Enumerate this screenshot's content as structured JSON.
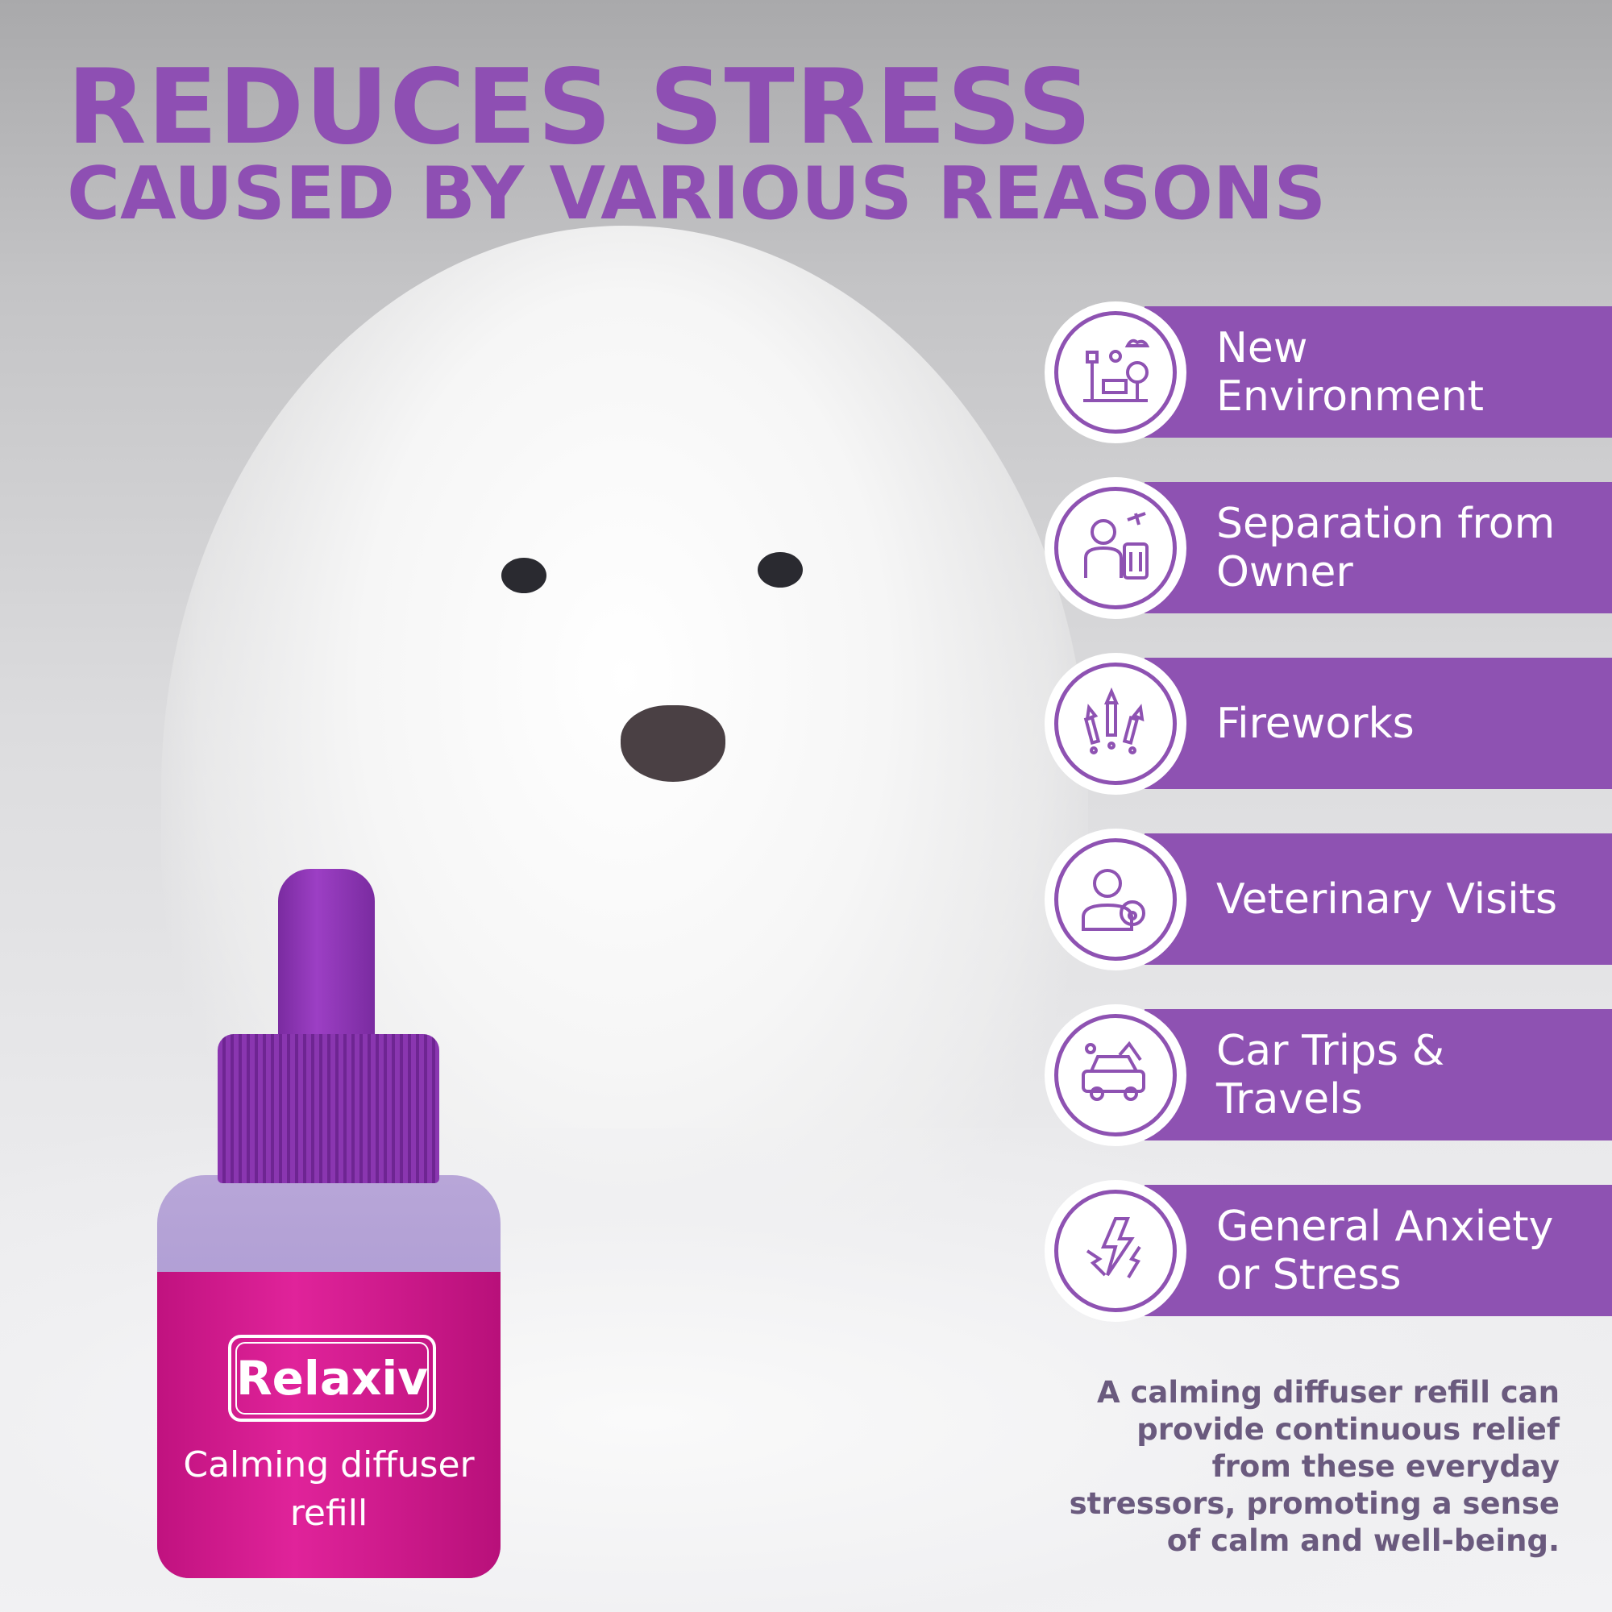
{
  "headline": {
    "title": "REDUCES STRESS",
    "subtitle": "CAUSED BY VARIOUS REASONS"
  },
  "colors": {
    "accent": "#8e52b2",
    "body_text": "#6a5a7e",
    "bottle_label": "#d81b8f"
  },
  "reasons": [
    {
      "label": "New Environment",
      "icon": "park-icon"
    },
    {
      "label": "Separation from Owner",
      "icon": "person-luggage-icon"
    },
    {
      "label": "Fireworks",
      "icon": "fireworks-icon"
    },
    {
      "label": "Veterinary Visits",
      "icon": "vet-icon"
    },
    {
      "label": "Car Trips & Travels",
      "icon": "car-icon"
    },
    {
      "label": "General Anxiety or Stress",
      "icon": "lightning-icon"
    }
  ],
  "blurb": [
    "A calming diffuser refill can",
    "provide continuous relief",
    "from these everyday",
    "stressors, promoting a sense",
    "of calm and well-being."
  ],
  "product": {
    "brand": "Relaxiv",
    "line1": "Calming diffuser",
    "line2": "refill"
  }
}
